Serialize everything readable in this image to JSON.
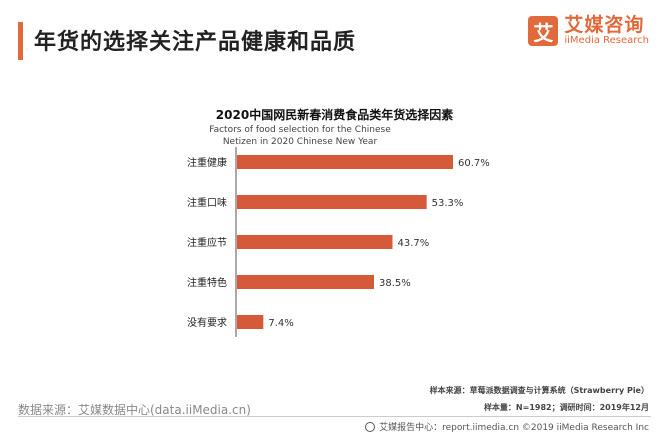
{
  "header": {
    "title": "年货的选择关注产品健康和品质",
    "brand_icon": "艾",
    "brand_cn": "艾媒咨询",
    "brand_en": "iiMedia Research",
    "accent_color": "#e06a3b"
  },
  "chart_data": {
    "type": "bar",
    "orientation": "horizontal",
    "title": "2020中国网民新春消费食品类年货选择因素",
    "subtitle": "Factors of food selection for the Chinese Netizen in 2020 Chinese New Year",
    "categories": [
      "注重健康",
      "注重口味",
      "注重应节",
      "注重特色",
      "没有要求"
    ],
    "values": [
      60.7,
      53.3,
      43.7,
      38.5,
      7.4
    ],
    "value_labels": [
      "60.7%",
      "53.3%",
      "43.7%",
      "38.5%",
      "7.4%"
    ],
    "unit": "%",
    "bar_color": "#d45a3a",
    "grid": false,
    "legend": "none"
  },
  "notes": {
    "sample_source": "样本来源：草莓派数据调查与计算系统（Strawberry Pie）",
    "sample_size": "样本量：N=1982；调研时间：2019年12月"
  },
  "source": "数据来源：艾媒数据中心(data.iiMedia.cn)",
  "footer": "艾媒报告中心：report.iimedia.cn ©2019 iiMedia Research Inc"
}
